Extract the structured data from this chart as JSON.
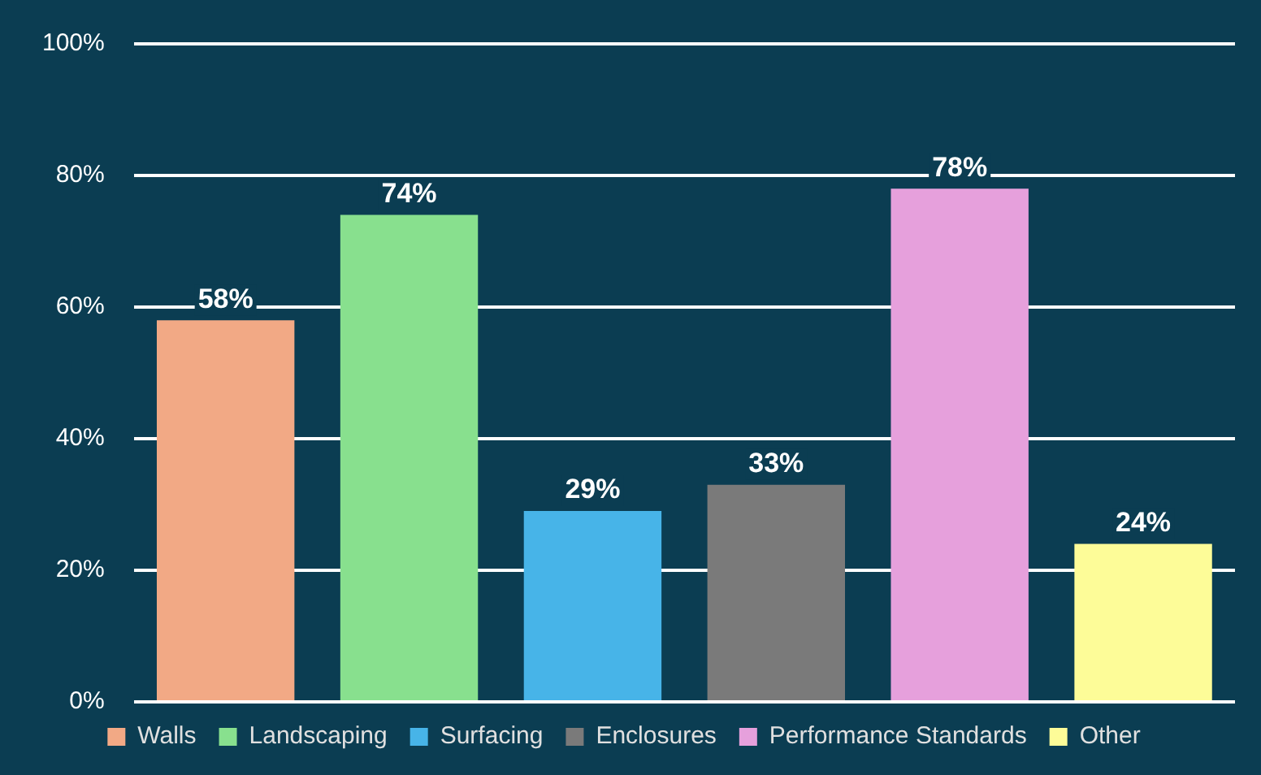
{
  "chart_data": {
    "type": "bar",
    "categories": [
      null,
      null,
      null,
      null,
      null,
      null
    ],
    "series": [
      {
        "name": "Walls",
        "color": "#f2a985",
        "values": [
          58,
          null,
          null,
          null,
          null,
          null
        ],
        "value_labels": [
          "58%",
          null,
          null,
          null,
          null,
          null
        ]
      },
      {
        "name": "Landscaping",
        "color": "#88e08e",
        "values": [
          null,
          74,
          null,
          null,
          null,
          null
        ],
        "value_labels": [
          null,
          "74%",
          null,
          null,
          null,
          null
        ]
      },
      {
        "name": "Surfacing",
        "color": "#47b4e8",
        "values": [
          null,
          null,
          29,
          null,
          null,
          null
        ],
        "value_labels": [
          null,
          null,
          "29%",
          null,
          null,
          null
        ]
      },
      {
        "name": "Enclosures",
        "color": "#7a7a7a",
        "values": [
          null,
          null,
          null,
          33,
          null,
          null
        ],
        "value_labels": [
          null,
          null,
          null,
          "33%",
          null,
          null
        ]
      },
      {
        "name": "Performance Standards",
        "color": "#e6a0dc",
        "values": [
          null,
          null,
          null,
          null,
          78,
          null
        ],
        "value_labels": [
          null,
          null,
          null,
          null,
          "78%",
          null
        ]
      },
      {
        "name": "Other",
        "color": "#fdfc98",
        "values": [
          null,
          null,
          null,
          null,
          null,
          24
        ],
        "value_labels": [
          null,
          null,
          null,
          null,
          null,
          "24%"
        ]
      }
    ],
    "ylim": [
      0,
      100
    ],
    "yticks": [
      {
        "value": 0,
        "label": "0%"
      },
      {
        "value": 20,
        "label": "20%"
      },
      {
        "value": 40,
        "label": "40%"
      },
      {
        "value": 60,
        "label": "60%"
      },
      {
        "value": 80,
        "label": "80%"
      },
      {
        "value": 100,
        "label": "100%"
      }
    ],
    "grid": "y",
    "legend": "bottom",
    "tick_labels": "y"
  }
}
